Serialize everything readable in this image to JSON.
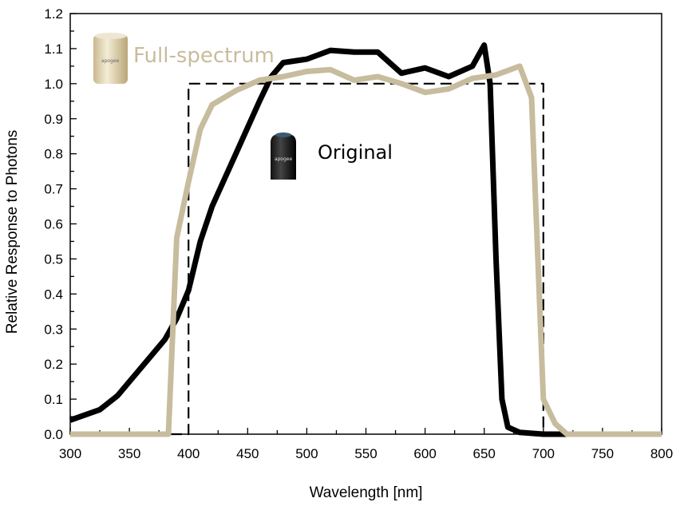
{
  "chart_data": {
    "type": "line",
    "title": "",
    "xlabel": "Wavelength [nm]",
    "ylabel": "Relative Response to Photons",
    "xlim": [
      300,
      800
    ],
    "ylim": [
      0,
      1.2
    ],
    "xticks": [
      300,
      350,
      400,
      450,
      500,
      550,
      600,
      650,
      700,
      750,
      800
    ],
    "yticks": [
      0.0,
      0.1,
      0.2,
      0.3,
      0.4,
      0.5,
      0.6,
      0.7,
      0.8,
      0.9,
      1.0,
      1.1,
      1.2
    ],
    "grid": false,
    "series": [
      {
        "name": "Original",
        "color": "#000000",
        "style": "solid",
        "x": [
          300,
          325,
          340,
          360,
          380,
          390,
          400,
          410,
          420,
          440,
          460,
          470,
          480,
          500,
          520,
          540,
          560,
          580,
          600,
          620,
          640,
          650,
          655,
          660,
          665,
          670,
          680,
          700,
          720
        ],
        "y": [
          0.04,
          0.07,
          0.11,
          0.19,
          0.27,
          0.33,
          0.41,
          0.55,
          0.65,
          0.8,
          0.95,
          1.02,
          1.06,
          1.07,
          1.095,
          1.09,
          1.09,
          1.03,
          1.045,
          1.02,
          1.05,
          1.11,
          1.0,
          0.5,
          0.1,
          0.02,
          0.005,
          0.0,
          0.0
        ]
      },
      {
        "name": "Full-spectrum",
        "color": "#c8bc9e",
        "style": "solid",
        "x": [
          300,
          383,
          390,
          400,
          410,
          420,
          440,
          460,
          480,
          500,
          520,
          540,
          560,
          580,
          600,
          620,
          640,
          660,
          680,
          690,
          700,
          710,
          720,
          800
        ],
        "y": [
          0,
          0,
          0.56,
          0.72,
          0.87,
          0.94,
          0.98,
          1.01,
          1.02,
          1.035,
          1.04,
          1.01,
          1.02,
          1.0,
          0.975,
          0.985,
          1.015,
          1.025,
          1.05,
          0.96,
          0.1,
          0.03,
          0.0,
          0.0
        ]
      },
      {
        "color": "#000000",
        "style": "dashed",
        "x": [
          300,
          400,
          400,
          700,
          700,
          800
        ],
        "y": [
          0,
          0,
          1,
          1,
          0,
          0
        ]
      }
    ]
  },
  "labels": {
    "full_spectrum": "Full-spectrum",
    "original": "Original"
  },
  "colors": {
    "full_spectrum": "#c8bc9e",
    "original": "#000000"
  },
  "icons": {
    "full_spectrum": "sensor-gold-icon",
    "original": "sensor-black-icon"
  },
  "logo_text": "apogee"
}
